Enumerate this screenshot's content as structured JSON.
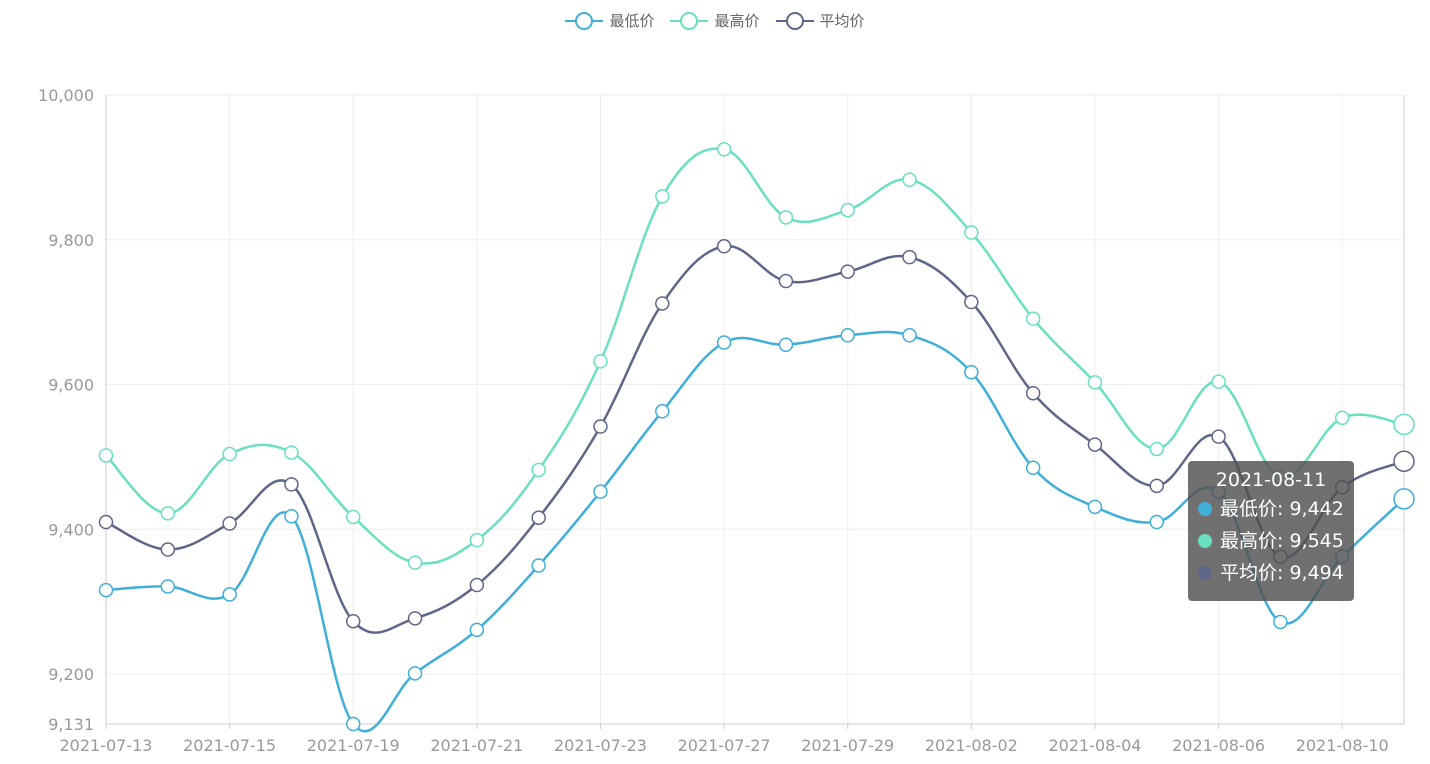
{
  "chart_data": {
    "type": "line",
    "smooth": true,
    "x": [
      "2021-07-13",
      "2021-07-14",
      "2021-07-15",
      "2021-07-16",
      "2021-07-19",
      "2021-07-20",
      "2021-07-21",
      "2021-07-22",
      "2021-07-23",
      "2021-07-26",
      "2021-07-27",
      "2021-07-28",
      "2021-07-29",
      "2021-07-30",
      "2021-08-02",
      "2021-08-03",
      "2021-08-04",
      "2021-08-05",
      "2021-08-06",
      "2021-08-09",
      "2021-08-10",
      "2021-08-11"
    ],
    "x_tick_labels": [
      "2021-07-13",
      "2021-07-15",
      "2021-07-19",
      "2021-07-21",
      "2021-07-23",
      "2021-07-27",
      "2021-07-29",
      "2021-08-02",
      "2021-08-04",
      "2021-08-06",
      "2021-08-10"
    ],
    "y_ticks": [
      "9,131",
      "9,200",
      "9,400",
      "9,600",
      "9,800",
      "10,000"
    ],
    "y_tick_values": [
      9131,
      9200,
      9400,
      9600,
      9800,
      10000
    ],
    "ylim": [
      9131,
      10000
    ],
    "grid": true,
    "legend_position": "top-center",
    "series": [
      {
        "name": "最低价",
        "color": "#3fafd9",
        "values": [
          9316,
          9321,
          9310,
          9418,
          9131,
          9201,
          9261,
          9350,
          9452,
          9563,
          9658,
          9655,
          9668,
          9668,
          9617,
          9485,
          9431,
          9410,
          9452,
          9272,
          9362,
          9442
        ]
      },
      {
        "name": "最高价",
        "color": "#6ae0c0",
        "values": [
          9502,
          9422,
          9504,
          9506,
          9417,
          9354,
          9385,
          9482,
          9632,
          9860,
          9925,
          9831,
          9841,
          9883,
          9810,
          9691,
          9603,
          9511,
          9604,
          9472,
          9554,
          9545
        ]
      },
      {
        "name": "平均价",
        "color": "#5f6789",
        "values": [
          9410,
          9372,
          9408,
          9462,
          9273,
          9277,
          9323,
          9416,
          9542,
          9712,
          9791,
          9743,
          9756,
          9776,
          9714,
          9588,
          9517,
          9460,
          9528,
          9362,
          9458,
          9494
        ]
      }
    ],
    "tooltip": {
      "title": "2021-08-11",
      "rows": [
        {
          "label": "最低价: 9,442",
          "color": "#3fafd9"
        },
        {
          "label": "最高价: 9,545",
          "color": "#6ae0c0"
        },
        {
          "label": "平均价: 9,494",
          "color": "#5f6789"
        }
      ]
    }
  }
}
